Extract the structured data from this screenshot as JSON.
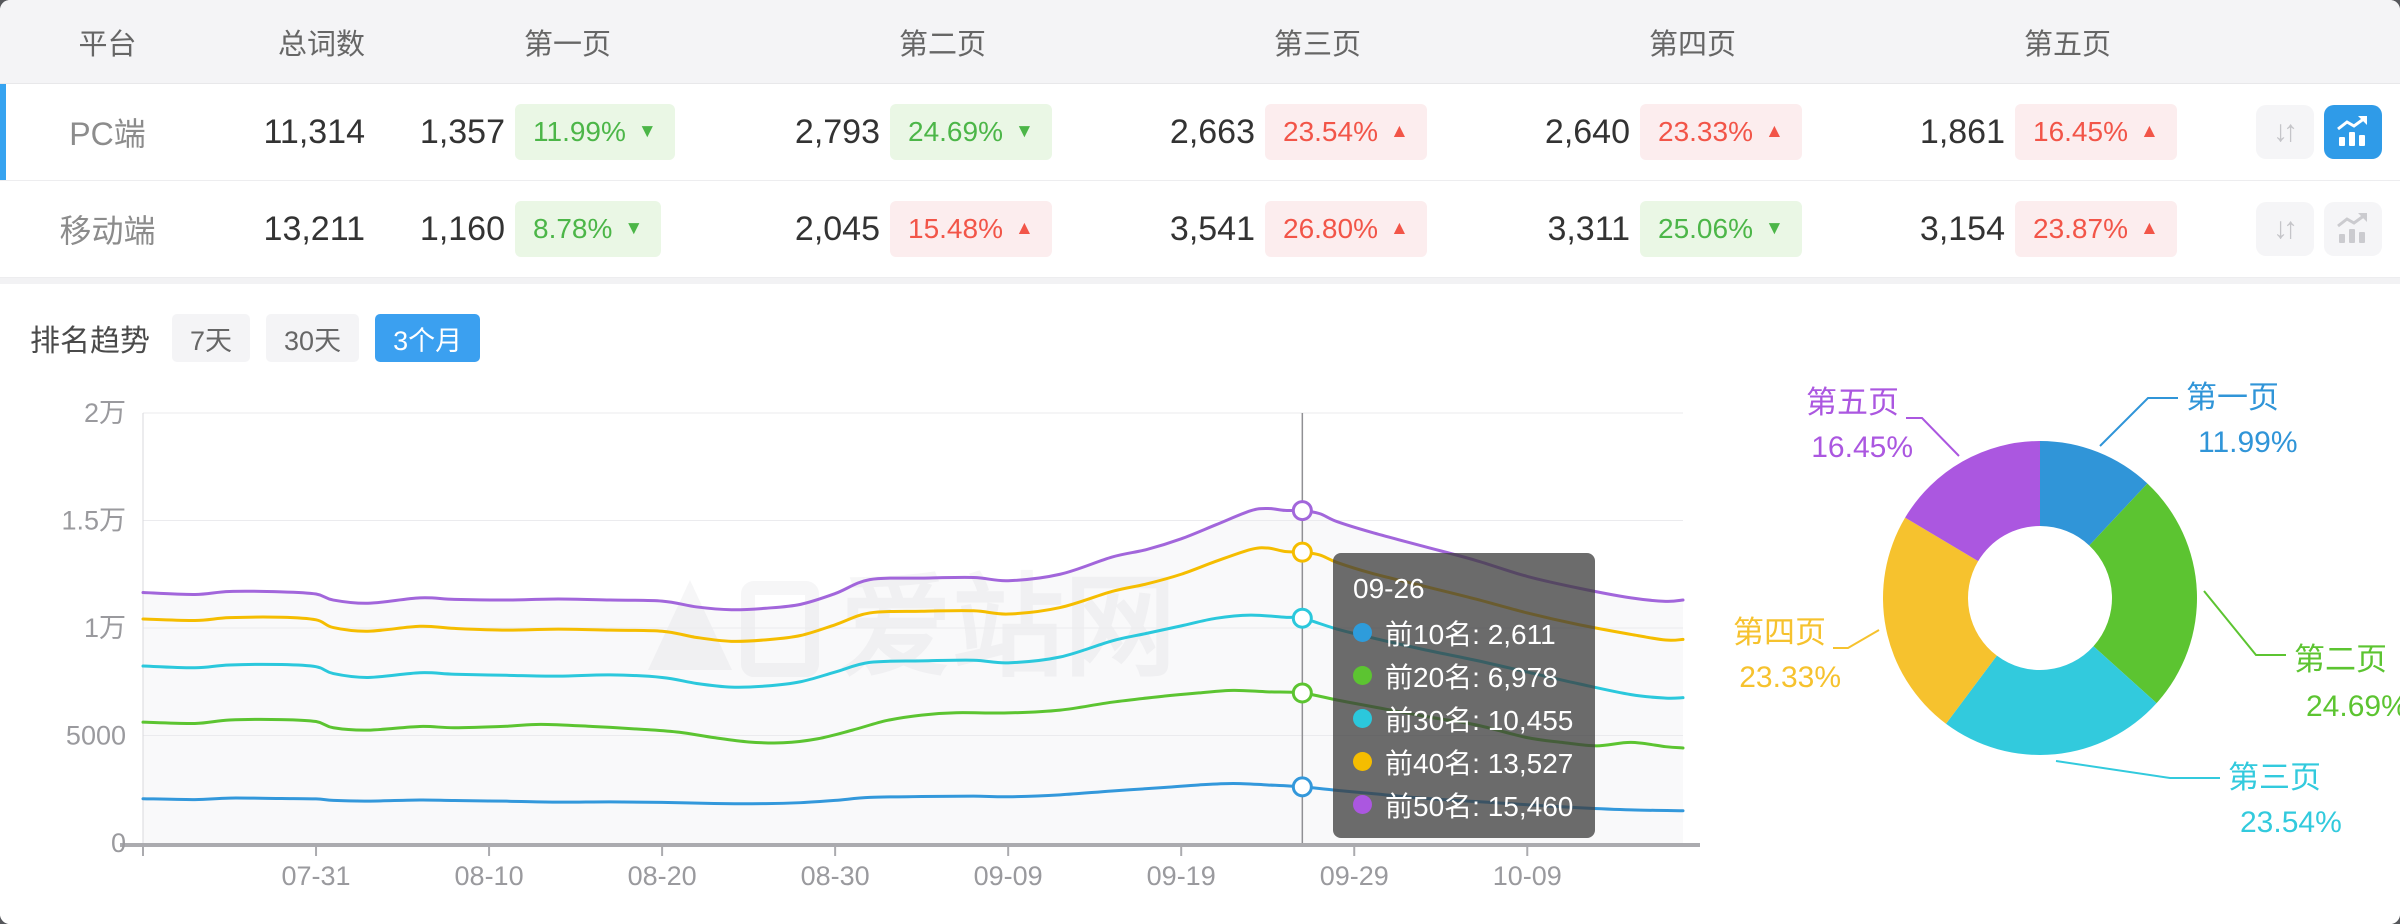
{
  "table": {
    "columns": [
      "平台",
      "总词数",
      "第一页",
      "第二页",
      "第三页",
      "第四页",
      "第五页"
    ],
    "rows": [
      {
        "platform": "PC端",
        "total": "11,314",
        "selected": true,
        "chart_active": true,
        "pages": [
          {
            "count": "1,357",
            "pct": "11.99%",
            "dir": "down"
          },
          {
            "count": "2,793",
            "pct": "24.69%",
            "dir": "down"
          },
          {
            "count": "2,663",
            "pct": "23.54%",
            "dir": "up"
          },
          {
            "count": "2,640",
            "pct": "23.33%",
            "dir": "up"
          },
          {
            "count": "1,861",
            "pct": "16.45%",
            "dir": "up"
          }
        ]
      },
      {
        "platform": "移动端",
        "total": "13,211",
        "selected": false,
        "chart_active": false,
        "pages": [
          {
            "count": "1,160",
            "pct": "8.78%",
            "dir": "down"
          },
          {
            "count": "2,045",
            "pct": "15.48%",
            "dir": "up"
          },
          {
            "count": "3,541",
            "pct": "26.80%",
            "dir": "up"
          },
          {
            "count": "3,311",
            "pct": "25.06%",
            "dir": "down"
          },
          {
            "count": "3,154",
            "pct": "23.87%",
            "dir": "up"
          }
        ]
      }
    ]
  },
  "trend": {
    "title": "排名趋势",
    "tabs": [
      {
        "label": "7天",
        "active": false
      },
      {
        "label": "30天",
        "active": false
      },
      {
        "label": "3个月",
        "active": true
      }
    ]
  },
  "watermark": "爱站网",
  "tooltip": {
    "date": "09-26",
    "rows": [
      {
        "name": "前10名",
        "value": "2,611",
        "color": "#2e9cdb"
      },
      {
        "name": "前20名",
        "value": "6,978",
        "color": "#5cc431"
      },
      {
        "name": "前30名",
        "value": "10,455",
        "color": "#2bc8dc"
      },
      {
        "name": "前40名",
        "value": "13,527",
        "color": "#f5bd00"
      },
      {
        "name": "前50名",
        "value": "15,460",
        "color": "#ab57e0"
      }
    ]
  },
  "colors": {
    "accent_blue": "#36a3f0",
    "up_red": "#f25548",
    "down_green": "#4cb648",
    "axis_gray": "#ababaf",
    "grid_gray": "#ebebee"
  },
  "chart_data": [
    {
      "type": "line",
      "title": "排名趋势 (3个月)",
      "x_unit": "days from 07-21",
      "x_tick_days": [
        10,
        20,
        30,
        40,
        50,
        60,
        70,
        80
      ],
      "x_tick_labels": [
        "07-31",
        "08-10",
        "08-20",
        "08-30",
        "09-09",
        "09-19",
        "09-29",
        "10-09"
      ],
      "y_tick_labels": [
        "0",
        "5000",
        "1万",
        "1.5万",
        "2万"
      ],
      "ylim": [
        0,
        20000
      ],
      "grid": true,
      "crosshair_day": 67,
      "crosshair_date": "09-26",
      "series": [
        {
          "name": "前10名",
          "color": "#3398db",
          "points": [
            [
              0,
              2060
            ],
            [
              3,
              2020
            ],
            [
              5,
              2090
            ],
            [
              8,
              2070
            ],
            [
              10,
              2050
            ],
            [
              11,
              1980
            ],
            [
              13,
              1950
            ],
            [
              16,
              2000
            ],
            [
              18,
              1975
            ],
            [
              21,
              1945
            ],
            [
              24,
              1900
            ],
            [
              27,
              1915
            ],
            [
              30,
              1890
            ],
            [
              33,
              1840
            ],
            [
              36,
              1830
            ],
            [
              38,
              1875
            ],
            [
              40,
              1980
            ],
            [
              42,
              2120
            ],
            [
              45,
              2160
            ],
            [
              48,
              2180
            ],
            [
              50,
              2150
            ],
            [
              53,
              2240
            ],
            [
              56,
              2420
            ],
            [
              59,
              2580
            ],
            [
              61,
              2700
            ],
            [
              63,
              2770
            ],
            [
              65,
              2700
            ],
            [
              67,
              2611
            ],
            [
              69,
              2450
            ],
            [
              71,
              2300
            ],
            [
              74,
              2080
            ],
            [
              77,
              1930
            ],
            [
              80,
              1780
            ],
            [
              83,
              1640
            ],
            [
              86,
              1540
            ],
            [
              89,
              1500
            ]
          ]
        },
        {
          "name": "前20名",
          "color": "#5cc431",
          "points": [
            [
              0,
              5620
            ],
            [
              3,
              5560
            ],
            [
              5,
              5720
            ],
            [
              8,
              5740
            ],
            [
              10,
              5650
            ],
            [
              11,
              5360
            ],
            [
              13,
              5250
            ],
            [
              16,
              5420
            ],
            [
              18,
              5360
            ],
            [
              21,
              5430
            ],
            [
              23,
              5520
            ],
            [
              26,
              5420
            ],
            [
              29,
              5280
            ],
            [
              31,
              5150
            ],
            [
              33,
              4900
            ],
            [
              35,
              4700
            ],
            [
              37,
              4660
            ],
            [
              39,
              4850
            ],
            [
              41,
              5250
            ],
            [
              43,
              5700
            ],
            [
              45,
              5950
            ],
            [
              47,
              6060
            ],
            [
              50,
              6050
            ],
            [
              53,
              6180
            ],
            [
              56,
              6550
            ],
            [
              59,
              6830
            ],
            [
              61,
              6980
            ],
            [
              63,
              7100
            ],
            [
              65,
              7030
            ],
            [
              67,
              6978
            ],
            [
              69,
              6650
            ],
            [
              71,
              6350
            ],
            [
              74,
              5900
            ],
            [
              77,
              5500
            ],
            [
              80,
              4900
            ],
            [
              82,
              4680
            ],
            [
              84,
              4520
            ],
            [
              86,
              4680
            ],
            [
              88,
              4480
            ],
            [
              89,
              4420
            ]
          ]
        },
        {
          "name": "前30名",
          "color": "#2bc8dc",
          "points": [
            [
              0,
              8230
            ],
            [
              3,
              8150
            ],
            [
              5,
              8280
            ],
            [
              8,
              8300
            ],
            [
              10,
              8200
            ],
            [
              11,
              7880
            ],
            [
              13,
              7700
            ],
            [
              16,
              7920
            ],
            [
              18,
              7850
            ],
            [
              21,
              7800
            ],
            [
              24,
              7760
            ],
            [
              27,
              7820
            ],
            [
              30,
              7700
            ],
            [
              32,
              7420
            ],
            [
              34,
              7250
            ],
            [
              36,
              7300
            ],
            [
              38,
              7500
            ],
            [
              40,
              7950
            ],
            [
              42,
              8400
            ],
            [
              45,
              8470
            ],
            [
              48,
              8500
            ],
            [
              50,
              8380
            ],
            [
              53,
              8650
            ],
            [
              56,
              9400
            ],
            [
              58,
              9750
            ],
            [
              60,
              10100
            ],
            [
              62,
              10450
            ],
            [
              64,
              10600
            ],
            [
              66,
              10500
            ],
            [
              67,
              10455
            ],
            [
              69,
              9950
            ],
            [
              71,
              9550
            ],
            [
              74,
              9000
            ],
            [
              77,
              8500
            ],
            [
              80,
              7950
            ],
            [
              83,
              7400
            ],
            [
              86,
              6900
            ],
            [
              88,
              6740
            ],
            [
              89,
              6760
            ]
          ]
        },
        {
          "name": "前40名",
          "color": "#f5bd00",
          "points": [
            [
              0,
              10420
            ],
            [
              3,
              10350
            ],
            [
              5,
              10480
            ],
            [
              8,
              10500
            ],
            [
              10,
              10380
            ],
            [
              11,
              10020
            ],
            [
              13,
              9850
            ],
            [
              16,
              10080
            ],
            [
              18,
              9980
            ],
            [
              21,
              9900
            ],
            [
              24,
              9950
            ],
            [
              27,
              9900
            ],
            [
              30,
              9850
            ],
            [
              32,
              9560
            ],
            [
              34,
              9380
            ],
            [
              36,
              9450
            ],
            [
              38,
              9650
            ],
            [
              40,
              10150
            ],
            [
              42,
              10700
            ],
            [
              45,
              10780
            ],
            [
              48,
              10800
            ],
            [
              50,
              10650
            ],
            [
              53,
              10950
            ],
            [
              56,
              11700
            ],
            [
              58,
              12050
            ],
            [
              60,
              12500
            ],
            [
              62,
              13100
            ],
            [
              64,
              13650
            ],
            [
              65,
              13720
            ],
            [
              66,
              13560
            ],
            [
              67,
              13527
            ],
            [
              68,
              13400
            ],
            [
              69,
              13050
            ],
            [
              71,
              12550
            ],
            [
              74,
              11950
            ],
            [
              77,
              11350
            ],
            [
              80,
              10700
            ],
            [
              83,
              10150
            ],
            [
              86,
              9700
            ],
            [
              88,
              9440
            ],
            [
              89,
              9470
            ]
          ]
        },
        {
          "name": "前50名",
          "color": "#a266db",
          "points": [
            [
              0,
              11650
            ],
            [
              3,
              11560
            ],
            [
              5,
              11700
            ],
            [
              8,
              11680
            ],
            [
              10,
              11580
            ],
            [
              11,
              11300
            ],
            [
              13,
              11150
            ],
            [
              16,
              11400
            ],
            [
              18,
              11330
            ],
            [
              21,
              11300
            ],
            [
              24,
              11350
            ],
            [
              27,
              11300
            ],
            [
              30,
              11250
            ],
            [
              32,
              10980
            ],
            [
              34,
              10850
            ],
            [
              36,
              10920
            ],
            [
              38,
              11100
            ],
            [
              40,
              11600
            ],
            [
              42,
              12250
            ],
            [
              45,
              12320
            ],
            [
              48,
              12350
            ],
            [
              50,
              12200
            ],
            [
              53,
              12500
            ],
            [
              56,
              13300
            ],
            [
              58,
              13650
            ],
            [
              60,
              14150
            ],
            [
              62,
              14800
            ],
            [
              64,
              15450
            ],
            [
              65,
              15560
            ],
            [
              66,
              15470
            ],
            [
              67,
              15460
            ],
            [
              68,
              15320
            ],
            [
              69,
              14950
            ],
            [
              71,
              14450
            ],
            [
              74,
              13800
            ],
            [
              77,
              13150
            ],
            [
              80,
              12400
            ],
            [
              83,
              11850
            ],
            [
              86,
              11400
            ],
            [
              88,
              11240
            ],
            [
              89,
              11300
            ]
          ]
        }
      ]
    },
    {
      "type": "pie",
      "donut": true,
      "legend_position": "outside-labels",
      "slices": [
        {
          "label": "第一页",
          "pct_label": "11.99%",
          "value": 11.99,
          "color": "#3095d8"
        },
        {
          "label": "第二页",
          "pct_label": "24.69%",
          "value": 24.69,
          "color": "#5cc431"
        },
        {
          "label": "第三页",
          "pct_label": "23.54%",
          "value": 23.54,
          "color": "#32cadd"
        },
        {
          "label": "第四页",
          "pct_label": "23.33%",
          "value": 23.33,
          "color": "#f6c22e"
        },
        {
          "label": "第五页",
          "pct_label": "16.45%",
          "value": 16.45,
          "color": "#ab57e0"
        }
      ]
    }
  ]
}
